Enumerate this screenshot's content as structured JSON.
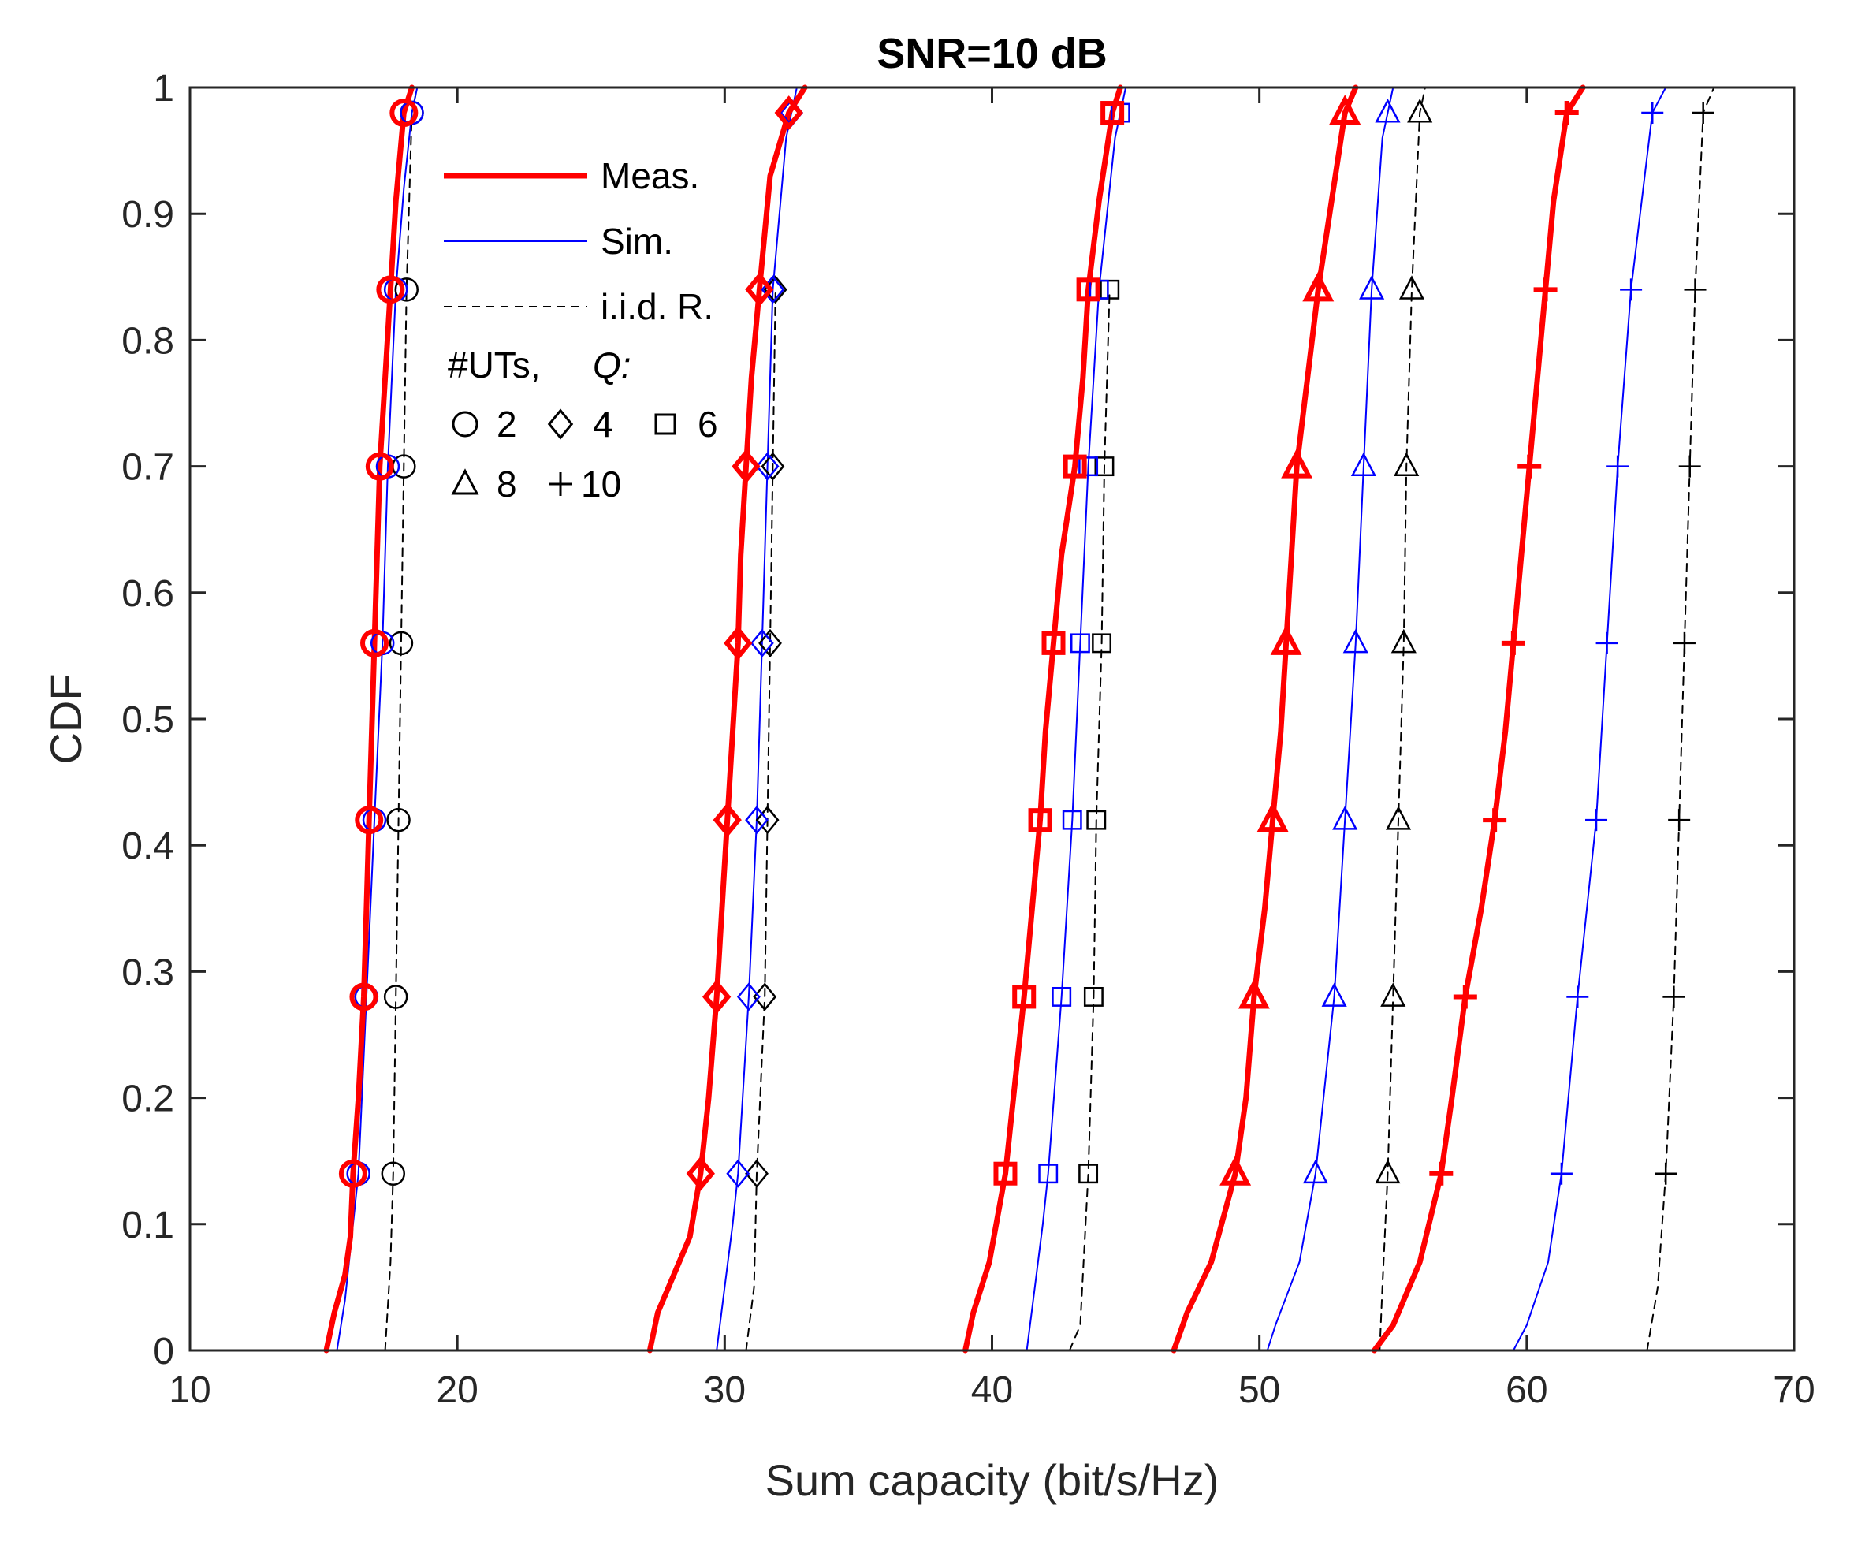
{
  "chart_data": {
    "type": "line",
    "title": "SNR=10 dB",
    "xlabel": "Sum capacity (bit/s/Hz)",
    "ylabel": "CDF",
    "xlim": [
      10,
      70
    ],
    "ylim": [
      0,
      1
    ],
    "x_ticks": [
      10,
      20,
      30,
      40,
      50,
      60,
      70
    ],
    "x_tick_labels": [
      "10",
      "20",
      "30",
      "40",
      "50",
      "60",
      "70"
    ],
    "y_ticks": [
      0,
      0.1,
      0.2,
      0.3,
      0.4,
      0.5,
      0.6,
      0.7,
      0.8,
      0.9,
      1
    ],
    "y_tick_labels": [
      "0",
      "0.1",
      "0.2",
      "0.3",
      "0.4",
      "0.5",
      "0.6",
      "0.7",
      "0.8",
      "0.9",
      "1"
    ],
    "grid": false,
    "legend": {
      "position": "top-left",
      "entries": [
        {
          "label": "Meas.",
          "style": "meas"
        },
        {
          "label": "Sim.",
          "style": "sim"
        },
        {
          "label": "i.i.d. R.",
          "style": "iid"
        }
      ],
      "marker_header": "#UTs,",
      "marker_header_q": "Q:",
      "marker_keys": [
        {
          "marker": "circle",
          "label": "2"
        },
        {
          "marker": "diamond",
          "label": "4"
        },
        {
          "marker": "square",
          "label": "6"
        },
        {
          "marker": "triangle",
          "label": "8"
        },
        {
          "marker": "plus",
          "label": "10"
        }
      ]
    },
    "styles": {
      "meas": {
        "color": "#ff0000",
        "width": 7,
        "dash": ""
      },
      "sim": {
        "color": "#0000ff",
        "width": 2,
        "dash": ""
      },
      "iid": {
        "color": "#000000",
        "width": 2,
        "dash": "10,8"
      }
    },
    "marker_y": [
      0.14,
      0.28,
      0.42,
      0.56,
      0.7,
      0.84,
      0.98
    ],
    "series": [
      {
        "name": "Meas. #UTs=2",
        "style": "meas",
        "marker": "circle",
        "points": [
          [
            15.1,
            0
          ],
          [
            15.4,
            0.03
          ],
          [
            15.8,
            0.06
          ],
          [
            16.0,
            0.09
          ],
          [
            16.1,
            0.14
          ],
          [
            16.3,
            0.2
          ],
          [
            16.5,
            0.28
          ],
          [
            16.6,
            0.35
          ],
          [
            16.7,
            0.42
          ],
          [
            16.8,
            0.49
          ],
          [
            16.9,
            0.56
          ],
          [
            17.0,
            0.63
          ],
          [
            17.1,
            0.7
          ],
          [
            17.3,
            0.77
          ],
          [
            17.5,
            0.84
          ],
          [
            17.7,
            0.91
          ],
          [
            18.0,
            0.98
          ],
          [
            18.3,
            1.0
          ]
        ]
      },
      {
        "name": "Sim. #UTs=2",
        "style": "sim",
        "marker": "circle",
        "points": [
          [
            15.5,
            0
          ],
          [
            15.8,
            0.04
          ],
          [
            16.1,
            0.1
          ],
          [
            16.3,
            0.14
          ],
          [
            16.6,
            0.28
          ],
          [
            16.9,
            0.42
          ],
          [
            17.2,
            0.56
          ],
          [
            17.4,
            0.7
          ],
          [
            17.7,
            0.84
          ],
          [
            18.0,
            0.92
          ],
          [
            18.3,
            0.98
          ],
          [
            18.5,
            1.0
          ]
        ]
      },
      {
        "name": "i.i.d. R. #UTs=2",
        "style": "iid",
        "marker": "circle",
        "points": [
          [
            17.3,
            0
          ],
          [
            17.5,
            0.07
          ],
          [
            17.6,
            0.14
          ],
          [
            17.7,
            0.28
          ],
          [
            17.8,
            0.42
          ],
          [
            17.9,
            0.56
          ],
          [
            18.0,
            0.7
          ],
          [
            18.1,
            0.84
          ],
          [
            18.3,
            0.98
          ],
          [
            18.5,
            1.0
          ]
        ]
      },
      {
        "name": "Meas. #UTs=4",
        "style": "meas",
        "marker": "diamond",
        "points": [
          [
            27.2,
            0
          ],
          [
            27.5,
            0.03
          ],
          [
            28.1,
            0.06
          ],
          [
            28.7,
            0.09
          ],
          [
            29.1,
            0.14
          ],
          [
            29.4,
            0.2
          ],
          [
            29.7,
            0.28
          ],
          [
            29.9,
            0.35
          ],
          [
            30.1,
            0.42
          ],
          [
            30.3,
            0.49
          ],
          [
            30.5,
            0.56
          ],
          [
            30.6,
            0.63
          ],
          [
            30.8,
            0.7
          ],
          [
            31.0,
            0.77
          ],
          [
            31.3,
            0.84
          ],
          [
            31.7,
            0.93
          ],
          [
            32.4,
            0.98
          ],
          [
            33.0,
            1.0
          ]
        ]
      },
      {
        "name": "Sim. #UTs=4",
        "style": "sim",
        "marker": "diamond",
        "points": [
          [
            29.7,
            0
          ],
          [
            30.0,
            0.05
          ],
          [
            30.3,
            0.1
          ],
          [
            30.5,
            0.14
          ],
          [
            30.9,
            0.28
          ],
          [
            31.2,
            0.42
          ],
          [
            31.4,
            0.56
          ],
          [
            31.6,
            0.7
          ],
          [
            31.8,
            0.84
          ],
          [
            32.3,
            0.96
          ],
          [
            32.7,
            1.0
          ]
        ]
      },
      {
        "name": "i.i.d. R. #UTs=4",
        "style": "iid",
        "marker": "diamond",
        "points": [
          [
            30.8,
            0
          ],
          [
            31.1,
            0.05
          ],
          [
            31.2,
            0.14
          ],
          [
            31.5,
            0.28
          ],
          [
            31.6,
            0.42
          ],
          [
            31.7,
            0.56
          ],
          [
            31.8,
            0.7
          ],
          [
            31.9,
            0.84
          ]
        ]
      },
      {
        "name": "Meas. #UTs=6",
        "style": "meas",
        "marker": "square",
        "points": [
          [
            39.0,
            0
          ],
          [
            39.3,
            0.03
          ],
          [
            39.9,
            0.07
          ],
          [
            40.5,
            0.14
          ],
          [
            40.8,
            0.2
          ],
          [
            41.2,
            0.28
          ],
          [
            41.5,
            0.35
          ],
          [
            41.8,
            0.42
          ],
          [
            42.0,
            0.49
          ],
          [
            42.3,
            0.56
          ],
          [
            42.6,
            0.63
          ],
          [
            43.1,
            0.7
          ],
          [
            43.4,
            0.77
          ],
          [
            43.6,
            0.84
          ],
          [
            44.0,
            0.91
          ],
          [
            44.5,
            0.98
          ],
          [
            44.8,
            1.0
          ]
        ]
      },
      {
        "name": "Sim. #UTs=6",
        "style": "sim",
        "marker": "square",
        "points": [
          [
            41.3,
            0
          ],
          [
            41.6,
            0.05
          ],
          [
            41.9,
            0.1
          ],
          [
            42.1,
            0.14
          ],
          [
            42.6,
            0.28
          ],
          [
            43.0,
            0.42
          ],
          [
            43.3,
            0.56
          ],
          [
            43.6,
            0.7
          ],
          [
            44.0,
            0.84
          ],
          [
            44.6,
            0.96
          ],
          [
            45.0,
            1.0
          ]
        ]
      },
      {
        "name": "i.i.d. R. #UTs=6",
        "style": "iid",
        "marker": "square",
        "points": [
          [
            42.9,
            0
          ],
          [
            43.3,
            0.02
          ],
          [
            43.5,
            0.1
          ],
          [
            43.6,
            0.14
          ],
          [
            43.8,
            0.28
          ],
          [
            43.9,
            0.42
          ],
          [
            44.1,
            0.56
          ],
          [
            44.2,
            0.7
          ],
          [
            44.4,
            0.84
          ]
        ]
      },
      {
        "name": "Meas. #UTs=8",
        "style": "meas",
        "marker": "triangle",
        "points": [
          [
            46.8,
            0
          ],
          [
            47.3,
            0.03
          ],
          [
            48.2,
            0.07
          ],
          [
            49.1,
            0.14
          ],
          [
            49.5,
            0.2
          ],
          [
            49.8,
            0.28
          ],
          [
            50.2,
            0.35
          ],
          [
            50.5,
            0.42
          ],
          [
            50.8,
            0.49
          ],
          [
            51.0,
            0.56
          ],
          [
            51.2,
            0.63
          ],
          [
            51.4,
            0.7
          ],
          [
            51.8,
            0.77
          ],
          [
            52.2,
            0.84
          ],
          [
            52.7,
            0.91
          ],
          [
            53.2,
            0.98
          ],
          [
            53.6,
            1.0
          ]
        ]
      },
      {
        "name": "Sim. #UTs=8",
        "style": "sim",
        "marker": "triangle",
        "points": [
          [
            50.3,
            0
          ],
          [
            50.6,
            0.02
          ],
          [
            51.5,
            0.07
          ],
          [
            52.1,
            0.14
          ],
          [
            52.8,
            0.28
          ],
          [
            53.2,
            0.42
          ],
          [
            53.6,
            0.56
          ],
          [
            53.9,
            0.7
          ],
          [
            54.2,
            0.84
          ],
          [
            54.6,
            0.96
          ],
          [
            55.0,
            1.0
          ]
        ]
      },
      {
        "name": "i.i.d. R. #UTs=8",
        "style": "iid",
        "marker": "triangle",
        "points": [
          [
            54.5,
            0
          ],
          [
            54.6,
            0.05
          ],
          [
            54.8,
            0.14
          ],
          [
            55.0,
            0.28
          ],
          [
            55.2,
            0.42
          ],
          [
            55.4,
            0.56
          ],
          [
            55.5,
            0.7
          ],
          [
            55.7,
            0.84
          ],
          [
            56.0,
            0.98
          ],
          [
            56.2,
            1.0
          ]
        ]
      },
      {
        "name": "Meas. #UTs=10",
        "style": "meas",
        "marker": "plus",
        "points": [
          [
            54.3,
            0
          ],
          [
            55.0,
            0.02
          ],
          [
            56.0,
            0.07
          ],
          [
            56.8,
            0.14
          ],
          [
            57.2,
            0.2
          ],
          [
            57.7,
            0.28
          ],
          [
            58.3,
            0.35
          ],
          [
            58.8,
            0.42
          ],
          [
            59.2,
            0.49
          ],
          [
            59.5,
            0.56
          ],
          [
            59.8,
            0.63
          ],
          [
            60.1,
            0.7
          ],
          [
            60.4,
            0.77
          ],
          [
            60.7,
            0.84
          ],
          [
            61.0,
            0.91
          ],
          [
            61.5,
            0.98
          ],
          [
            62.1,
            1.0
          ]
        ]
      },
      {
        "name": "Sim. #UTs=10",
        "style": "sim",
        "marker": "plus",
        "points": [
          [
            59.5,
            0
          ],
          [
            60.0,
            0.02
          ],
          [
            60.8,
            0.07
          ],
          [
            61.3,
            0.14
          ],
          [
            61.9,
            0.28
          ],
          [
            62.6,
            0.42
          ],
          [
            63.0,
            0.56
          ],
          [
            63.4,
            0.7
          ],
          [
            63.9,
            0.84
          ],
          [
            64.7,
            0.98
          ],
          [
            65.2,
            1.0
          ]
        ]
      },
      {
        "name": "i.i.d. R. #UTs=10",
        "style": "iid",
        "marker": "plus",
        "points": [
          [
            64.5,
            0
          ],
          [
            64.9,
            0.05
          ],
          [
            65.2,
            0.14
          ],
          [
            65.5,
            0.28
          ],
          [
            65.7,
            0.42
          ],
          [
            65.9,
            0.56
          ],
          [
            66.1,
            0.7
          ],
          [
            66.3,
            0.84
          ],
          [
            66.6,
            0.98
          ],
          [
            67.0,
            1.0
          ]
        ]
      }
    ]
  }
}
